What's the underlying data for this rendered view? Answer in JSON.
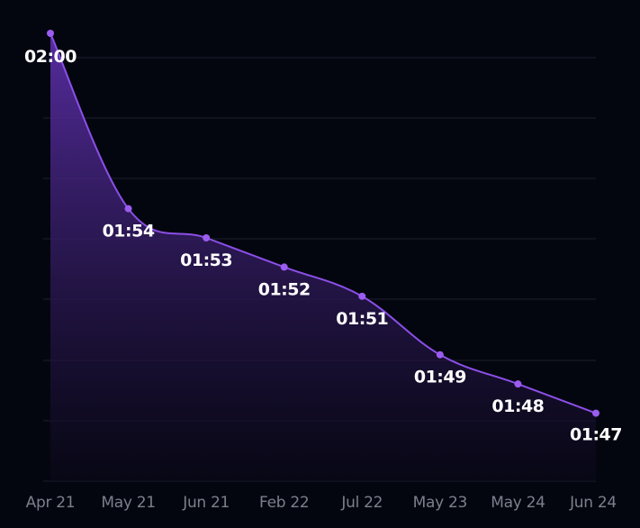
{
  "chart_data": {
    "type": "area",
    "categories": [
      "Apr 21",
      "May 21",
      "Jun 21",
      "Feb 22",
      "Jul 22",
      "May 23",
      "May 24",
      "Jun 24"
    ],
    "series": [
      {
        "values": [
          120,
          114,
          113,
          112,
          111,
          109,
          108,
          107
        ],
        "labels": [
          "02:00",
          "01:54",
          "01:53",
          "01:52",
          "01:51",
          "01:49",
          "01:48",
          "01:47"
        ]
      }
    ],
    "value_unit": "seconds",
    "title": "",
    "xlabel": "",
    "ylabel": "",
    "ylim": [
      106,
      120
    ],
    "grid": true,
    "legend": "none",
    "colors": {
      "line": "#8b4fe8",
      "point": "#9b5cf0",
      "fill_top": "#5a2ea6",
      "fill_bottom": "#0a0818",
      "background": "#04060f",
      "grid": "#1c1f2c",
      "data_label": "#ffffff",
      "tick_label": "#7c7f8c"
    }
  }
}
